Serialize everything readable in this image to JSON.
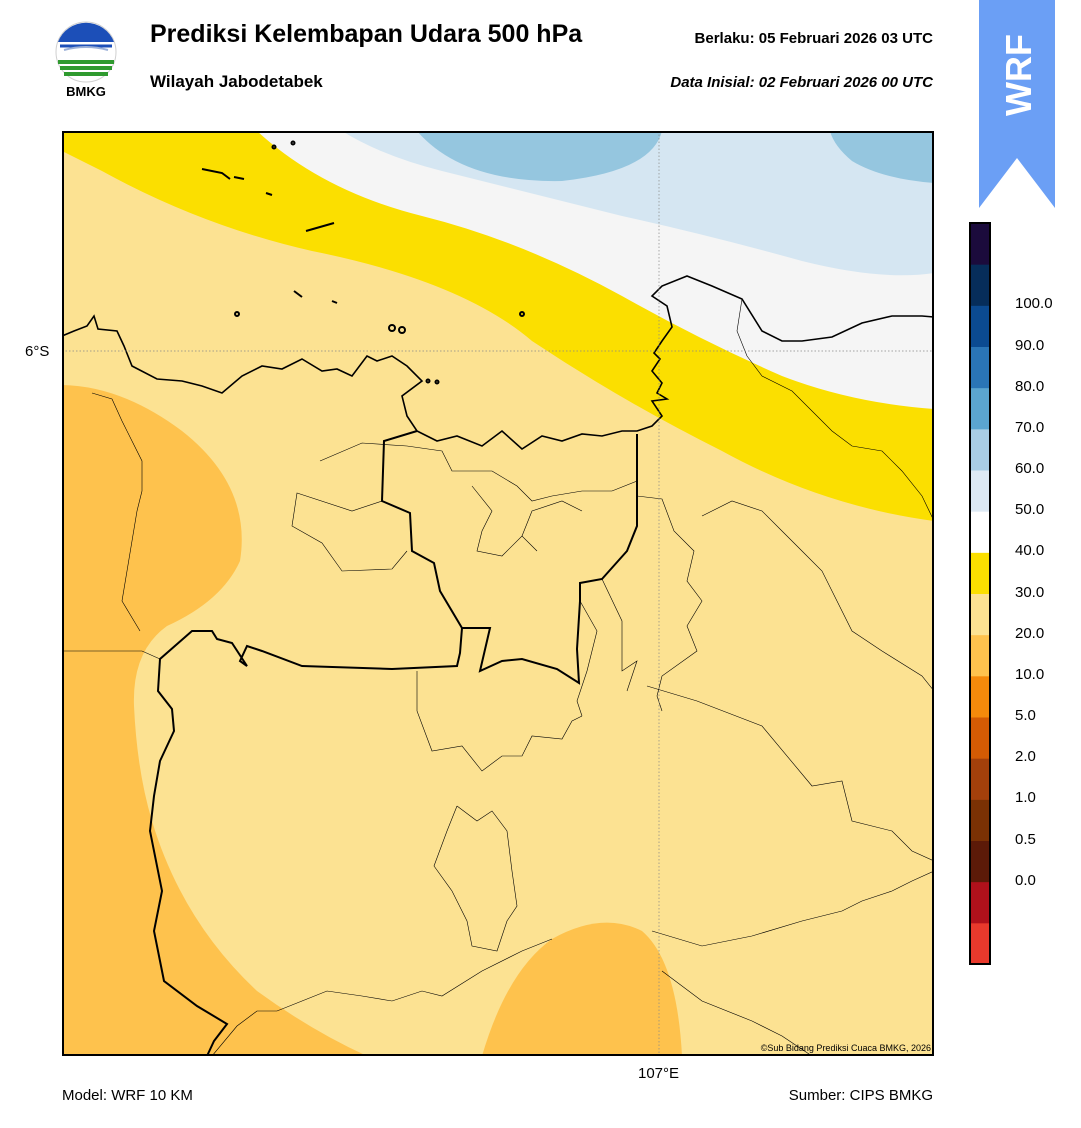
{
  "header": {
    "title": "Prediksi Kelembapan Udara 500 hPa",
    "subtitle": "Wilayah Jabodetabek",
    "valid_time": "Berlaku:  05 Februari 2026 03 UTC",
    "init_time": "Data Inisial:  02 Februari 2026 00 UTC"
  },
  "logo": {
    "text": "BMKG",
    "icon": "bmkg-logo"
  },
  "badge": {
    "text": "WRF",
    "color": "#6b9ff5"
  },
  "map": {
    "lat_label": "6°S",
    "lon_label": "107°E",
    "credit": "©Sub Bidang Prediksi Cuaca BMKG, 2026"
  },
  "colorbar": {
    "labels": [
      "100.0",
      "90.0",
      "80.0",
      "70.0",
      "60.0",
      "50.0",
      "40.0",
      "30.0",
      "20.0",
      "10.0",
      "5.0",
      "2.0",
      "1.0",
      "0.5",
      "0.0"
    ],
    "colors": [
      "#e8392c",
      "#b0111b",
      "#5c1a08",
      "#7a3104",
      "#a3400b",
      "#d45b04",
      "#f58a0b",
      "#fec24d",
      "#fce292",
      "#fbdf00",
      "#ffffff",
      "#dde9f4",
      "#a8cde4",
      "#5ba5d0",
      "#2a75b7",
      "#0b4a91",
      "#062d5a",
      "#1b0b3c"
    ]
  },
  "footer": {
    "model": "Model: WRF 10 KM",
    "source": "Sumber: CIPS BMKG"
  }
}
